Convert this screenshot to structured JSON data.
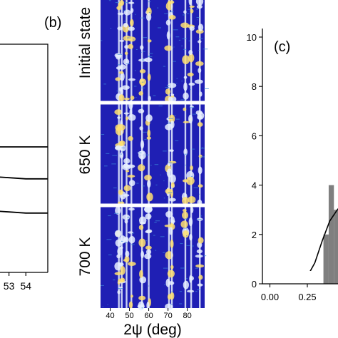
{
  "panels": {
    "a": {
      "x_tick_labels": [
        "53",
        "54"
      ]
    },
    "b": {
      "label": "(b)",
      "row_labels": [
        "Initial state",
        "650 K",
        "700 K"
      ],
      "x_tick_labels": [
        "40",
        "50",
        "60",
        "70",
        "80"
      ],
      "x_axis_label": "2ψ (deg)",
      "colors": {
        "background": "#1f1fb4",
        "line_bright": "#e8f0ff",
        "line_hot": "#ffe070",
        "separator": "#ffffff"
      }
    },
    "c": {
      "label": "(c)",
      "bar_color": "#7f7f7f",
      "curve_color": "#000000"
    }
  },
  "chart_data": [
    {
      "panel": "a",
      "type": "line",
      "x_ticks": [
        53,
        54
      ],
      "xlim": [
        51.2,
        55.3
      ],
      "series": [
        {
          "values": [
            [
              51.2,
              0.55
            ],
            [
              52.0,
              0.55
            ],
            [
              53.0,
              0.55
            ],
            [
              54.0,
              0.55
            ],
            [
              55.3,
              0.55
            ]
          ]
        },
        {
          "values": [
            [
              51.2,
              0.42
            ],
            [
              52.0,
              0.42
            ],
            [
              53.0,
              0.415
            ],
            [
              54.0,
              0.41
            ],
            [
              55.3,
              0.41
            ]
          ]
        },
        {
          "values": [
            [
              51.2,
              0.27
            ],
            [
              52.0,
              0.27
            ],
            [
              53.0,
              0.265
            ],
            [
              54.0,
              0.26
            ],
            [
              55.3,
              0.26
            ]
          ]
        }
      ],
      "ylim": [
        0,
        1
      ]
    },
    {
      "panel": "b",
      "type": "heatmap",
      "xlabel": "2ψ (deg)",
      "x_ticks": [
        40,
        50,
        60,
        70,
        80
      ],
      "xlim": [
        35,
        89
      ],
      "rows": [
        "Initial state",
        "650 K",
        "700 K"
      ],
      "bright_lines_2psi": [
        44.5,
        46.0,
        48.5,
        51.0,
        56.5,
        60.0,
        70.5,
        72.0,
        79.0,
        82.0,
        86.5
      ]
    },
    {
      "panel": "c",
      "type": "bar",
      "xlim": [
        -0.05,
        0.78
      ],
      "ylim": [
        0,
        10
      ],
      "x_ticks": [
        0.0,
        0.25
      ],
      "x_tick_labels": [
        "0.00",
        "0.25"
      ],
      "y_ticks": [
        0,
        2,
        4,
        6,
        8,
        10
      ],
      "bars": [
        {
          "x": 0.375,
          "width": 0.035,
          "value": 2
        },
        {
          "x": 0.41,
          "width": 0.035,
          "value": 4
        },
        {
          "x": 0.445,
          "width": 0.035,
          "value": 3
        }
      ],
      "curve": [
        [
          0.0,
          0.0
        ],
        [
          0.1,
          0.005
        ],
        [
          0.2,
          0.1
        ],
        [
          0.25,
          0.3
        ],
        [
          0.3,
          0.85
        ],
        [
          0.35,
          1.75
        ],
        [
          0.4,
          2.55
        ],
        [
          0.45,
          3.0
        ],
        [
          0.48,
          3.2
        ]
      ]
    }
  ]
}
